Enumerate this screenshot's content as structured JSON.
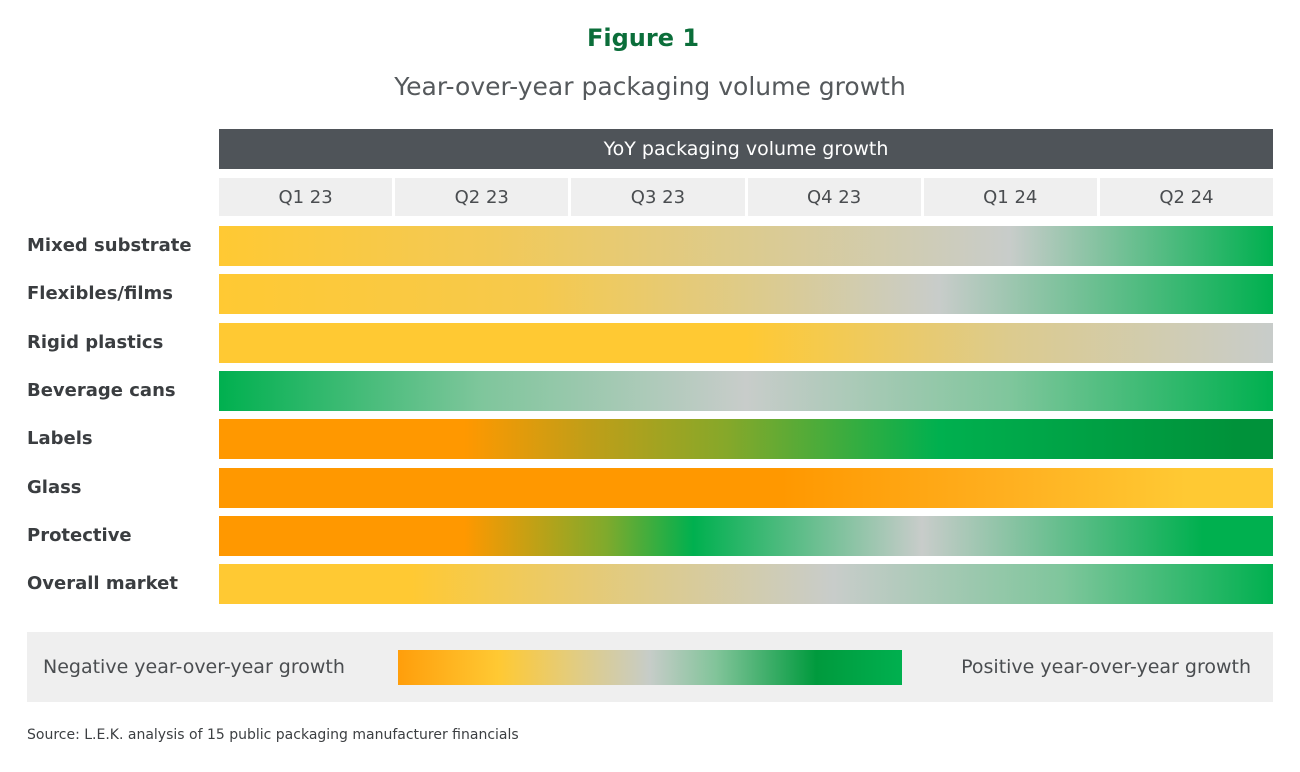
{
  "figure_label": "Figure 1",
  "title": "Year-over-year packaging volume growth",
  "source": "Source: L.E.K. analysis of 15 public packaging manufacturer financials",
  "chart_data": {
    "type": "heatmap",
    "header": "YoY packaging volume growth",
    "categories": [
      "Q1 23",
      "Q2 23",
      "Q3 23",
      "Q4 23",
      "Q1 24",
      "Q2 24"
    ],
    "rows": [
      {
        "name": "Mixed substrate",
        "stops": [
          [
            -0.5,
            "#FFC933"
          ],
          [
            1,
            "#F3C955"
          ],
          [
            2.5,
            "#DCCB8E"
          ],
          [
            4,
            "#C8CCCA"
          ],
          [
            5.5,
            "#00B04F"
          ]
        ]
      },
      {
        "name": "Flexibles/films",
        "stops": [
          [
            -0.5,
            "#FFC933"
          ],
          [
            1.3,
            "#F6C94C"
          ],
          [
            2.6,
            "#DCCB8E"
          ],
          [
            3.6,
            "#C8CCCA"
          ],
          [
            5.5,
            "#00B04F"
          ]
        ]
      },
      {
        "name": "Rigid plastics",
        "stops": [
          [
            -0.5,
            "#FFC933"
          ],
          [
            2.5,
            "#FFC933"
          ],
          [
            4,
            "#DCCB8E"
          ],
          [
            5.5,
            "#C8CCCA"
          ]
        ]
      },
      {
        "name": "Beverage cans",
        "stops": [
          [
            -0.5,
            "#00B04F"
          ],
          [
            1,
            "#7FC69C"
          ],
          [
            2.5,
            "#C8CCCA"
          ],
          [
            4,
            "#7FC69C"
          ],
          [
            5.5,
            "#00B04F"
          ]
        ]
      },
      {
        "name": "Labels",
        "stops": [
          [
            -0.5,
            "#FF9800"
          ],
          [
            0.9,
            "#FF9800"
          ],
          [
            1.6,
            "#C09E18"
          ],
          [
            2.4,
            "#85A82A"
          ],
          [
            3.6,
            "#00B04F"
          ],
          [
            5.3,
            "#00923A"
          ],
          [
            5.5,
            "#00923A"
          ]
        ]
      },
      {
        "name": "Glass",
        "stops": [
          [
            -0.5,
            "#FF9800"
          ],
          [
            2.7,
            "#FF9800"
          ],
          [
            4,
            "#FFB020"
          ],
          [
            5,
            "#FFC933"
          ],
          [
            5.5,
            "#FFC933"
          ]
        ]
      },
      {
        "name": "Protective",
        "stops": [
          [
            -0.5,
            "#FF9800"
          ],
          [
            0.9,
            "#FF9800"
          ],
          [
            1.7,
            "#80AA2C"
          ],
          [
            2.2,
            "#00B04F"
          ],
          [
            3.5,
            "#C8CCCA"
          ],
          [
            5.1,
            "#00B04F"
          ],
          [
            5.5,
            "#00B04F"
          ]
        ]
      },
      {
        "name": "Overall market",
        "stops": [
          [
            -0.5,
            "#FFC933"
          ],
          [
            0.6,
            "#FFC933"
          ],
          [
            2,
            "#DCCB8E"
          ],
          [
            3,
            "#C8CCCA"
          ],
          [
            4.3,
            "#7FC69C"
          ],
          [
            5.5,
            "#00B04F"
          ]
        ]
      }
    ],
    "legend": {
      "negative_label": "Negative year-over-year growth",
      "positive_label": "Positive year-over-year growth",
      "scale_colors": [
        "#FF9E0B",
        "#FFC933",
        "#E2CC80",
        "#C6CCC8",
        "#82C49A",
        "#009A3D",
        "#00B04F"
      ]
    }
  }
}
